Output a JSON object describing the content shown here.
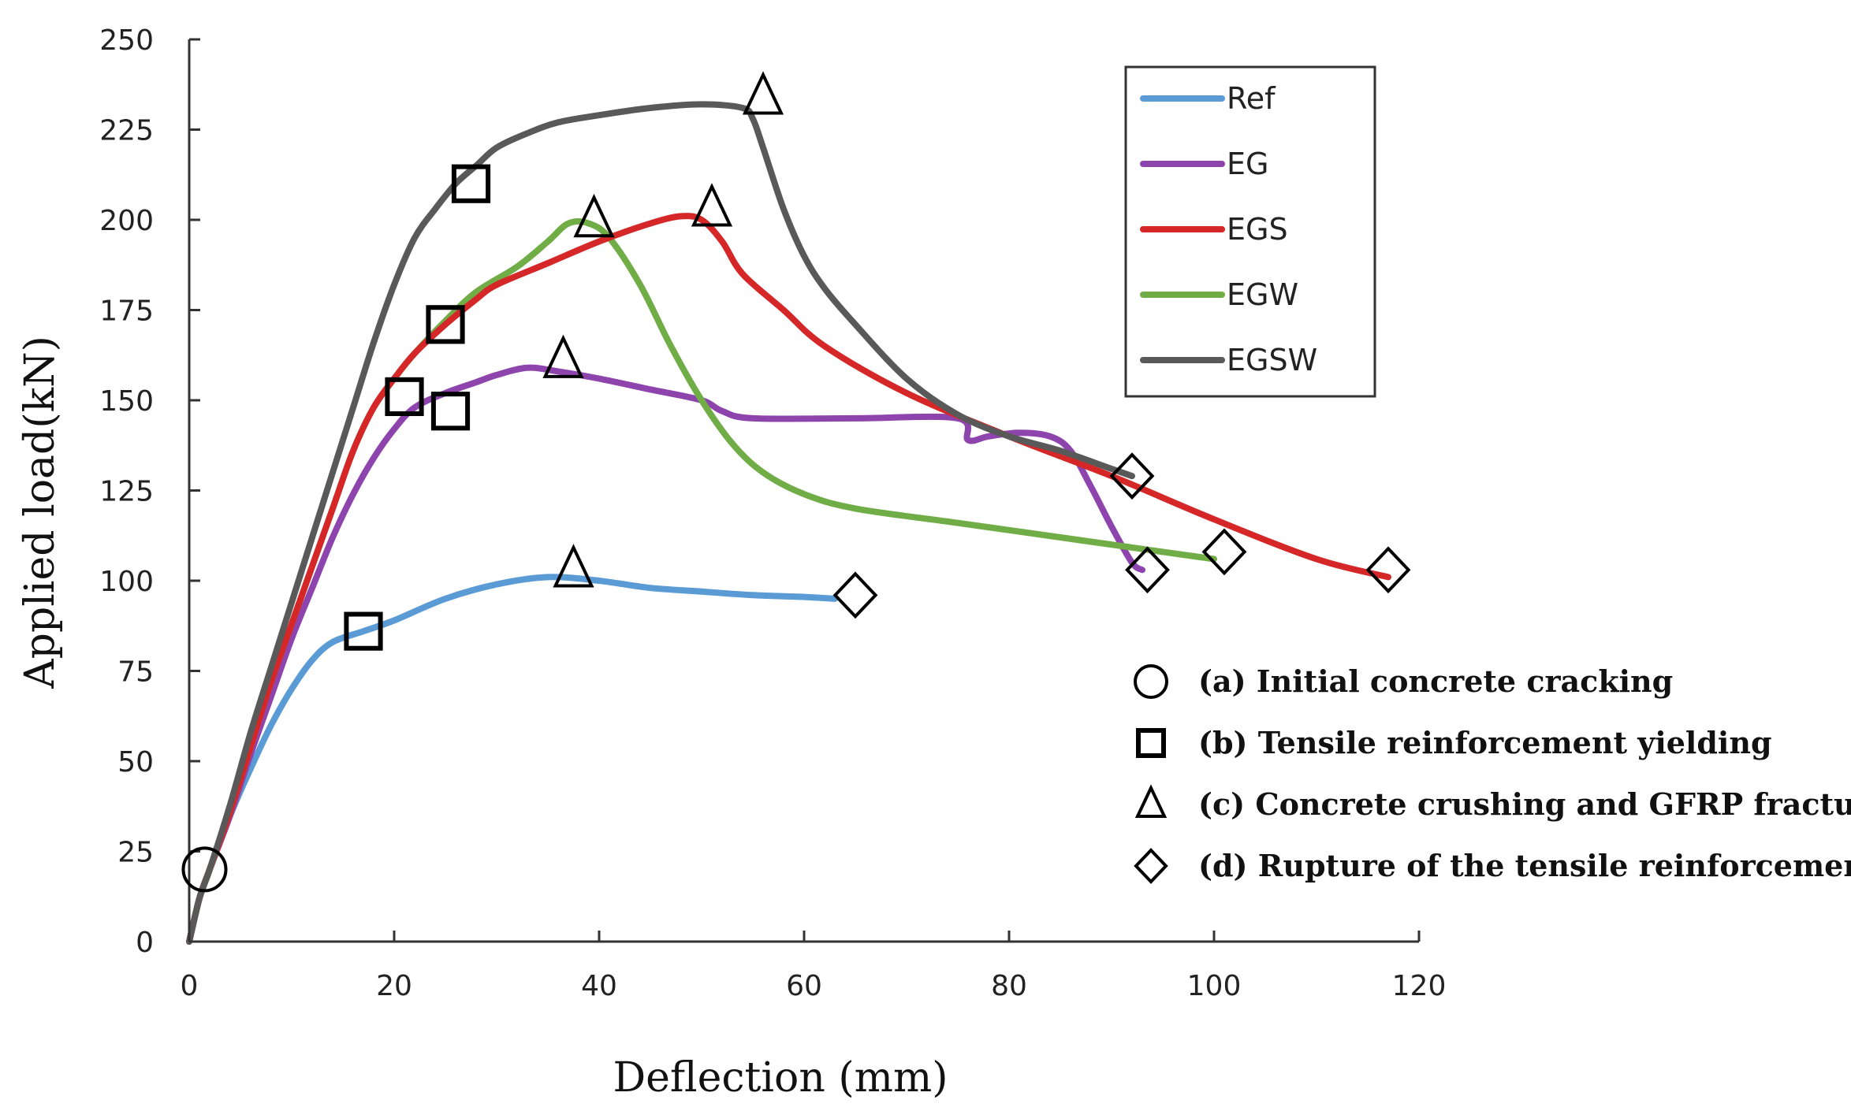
{
  "chart_data": {
    "type": "line",
    "xlabel": "Deflection (mm)",
    "ylabel": "Applied load(kN)",
    "xlim": [
      0,
      120
    ],
    "ylim": [
      0,
      250
    ],
    "x_ticks": [
      0,
      20,
      40,
      60,
      80,
      100,
      120
    ],
    "y_ticks": [
      0,
      25,
      50,
      75,
      100,
      125,
      150,
      175,
      200,
      225,
      250
    ],
    "series": [
      {
        "name": "Ref",
        "color": "#5b9bd5",
        "points": [
          [
            0,
            0
          ],
          [
            1,
            12
          ],
          [
            2,
            20
          ],
          [
            4,
            35
          ],
          [
            6,
            48
          ],
          [
            8,
            60
          ],
          [
            10,
            70
          ],
          [
            12,
            78
          ],
          [
            14,
            83
          ],
          [
            17,
            86
          ],
          [
            20,
            89
          ],
          [
            25,
            95
          ],
          [
            30,
            99
          ],
          [
            35,
            101
          ],
          [
            40,
            100
          ],
          [
            45,
            98
          ],
          [
            50,
            97
          ],
          [
            55,
            96
          ],
          [
            60,
            95.5
          ],
          [
            63,
            95
          ]
        ]
      },
      {
        "name": "EG",
        "color": "#8e44ad",
        "points": [
          [
            0,
            0
          ],
          [
            1,
            12
          ],
          [
            2,
            20
          ],
          [
            4,
            35
          ],
          [
            6,
            52
          ],
          [
            8,
            68
          ],
          [
            10,
            84
          ],
          [
            12,
            98
          ],
          [
            14,
            112
          ],
          [
            16,
            124
          ],
          [
            18,
            134
          ],
          [
            20,
            142
          ],
          [
            22,
            148
          ],
          [
            25,
            152
          ],
          [
            28,
            155
          ],
          [
            30,
            157
          ],
          [
            33,
            159
          ],
          [
            36,
            158
          ],
          [
            40,
            156
          ],
          [
            45,
            153
          ],
          [
            50,
            150
          ],
          [
            52,
            147
          ],
          [
            55,
            145
          ],
          [
            65,
            145
          ],
          [
            75,
            145
          ],
          [
            76,
            139
          ],
          [
            78,
            140
          ],
          [
            81,
            141
          ],
          [
            84,
            140
          ],
          [
            86,
            136
          ],
          [
            88,
            126
          ],
          [
            90,
            115
          ],
          [
            92,
            105
          ],
          [
            93,
            103
          ]
        ]
      },
      {
        "name": "EGS",
        "color": "#d62728",
        "points": [
          [
            0,
            0
          ],
          [
            1,
            12
          ],
          [
            2,
            20
          ],
          [
            4,
            36
          ],
          [
            6,
            54
          ],
          [
            8,
            72
          ],
          [
            10,
            88
          ],
          [
            12,
            104
          ],
          [
            14,
            120
          ],
          [
            16,
            136
          ],
          [
            18,
            148
          ],
          [
            20,
            156
          ],
          [
            22,
            163
          ],
          [
            25,
            171
          ],
          [
            28,
            178
          ],
          [
            30,
            182
          ],
          [
            35,
            188
          ],
          [
            40,
            194
          ],
          [
            45,
            199
          ],
          [
            48,
            201
          ],
          [
            50,
            200
          ],
          [
            52,
            194
          ],
          [
            54,
            185
          ],
          [
            58,
            175
          ],
          [
            62,
            165
          ],
          [
            70,
            152
          ],
          [
            80,
            140
          ],
          [
            90,
            129
          ],
          [
            100,
            117
          ],
          [
            110,
            106
          ],
          [
            117,
            101
          ]
        ]
      },
      {
        "name": "EGW",
        "color": "#70ad47",
        "points": [
          [
            0,
            0
          ],
          [
            1,
            12
          ],
          [
            2,
            20
          ],
          [
            4,
            36
          ],
          [
            6,
            54
          ],
          [
            8,
            72
          ],
          [
            10,
            88
          ],
          [
            12,
            104
          ],
          [
            14,
            120
          ],
          [
            16,
            136
          ],
          [
            18,
            148
          ],
          [
            20,
            156
          ],
          [
            22,
            163
          ],
          [
            25,
            172
          ],
          [
            28,
            180
          ],
          [
            32,
            187
          ],
          [
            35,
            194
          ],
          [
            37,
            199
          ],
          [
            39,
            199
          ],
          [
            41,
            195
          ],
          [
            44,
            182
          ],
          [
            47,
            165
          ],
          [
            50,
            150
          ],
          [
            53,
            138
          ],
          [
            56,
            130
          ],
          [
            60,
            124
          ],
          [
            65,
            120
          ],
          [
            75,
            116
          ],
          [
            85,
            112
          ],
          [
            95,
            108
          ],
          [
            100,
            106
          ]
        ]
      },
      {
        "name": "EGSW",
        "color": "#595959",
        "points": [
          [
            0,
            0
          ],
          [
            1,
            12
          ],
          [
            2,
            20
          ],
          [
            4,
            38
          ],
          [
            6,
            58
          ],
          [
            8,
            76
          ],
          [
            10,
            94
          ],
          [
            12,
            112
          ],
          [
            14,
            130
          ],
          [
            16,
            148
          ],
          [
            18,
            166
          ],
          [
            20,
            182
          ],
          [
            22,
            195
          ],
          [
            24,
            203
          ],
          [
            26,
            210
          ],
          [
            28,
            215
          ],
          [
            30,
            220
          ],
          [
            33,
            224
          ],
          [
            36,
            227
          ],
          [
            40,
            229
          ],
          [
            45,
            231
          ],
          [
            50,
            232
          ],
          [
            54,
            231
          ],
          [
            55,
            228
          ],
          [
            56,
            220
          ],
          [
            58,
            203
          ],
          [
            60,
            190
          ],
          [
            62,
            181
          ],
          [
            65,
            171
          ],
          [
            70,
            156
          ],
          [
            75,
            146
          ],
          [
            80,
            140
          ],
          [
            85,
            136
          ],
          [
            90,
            131
          ],
          [
            92,
            129
          ]
        ]
      }
    ],
    "markers": [
      {
        "shape": "circle",
        "x": 1.5,
        "y": 20
      },
      {
        "shape": "square",
        "x": 17,
        "y": 86
      },
      {
        "shape": "square",
        "x": 21,
        "y": 151
      },
      {
        "shape": "square",
        "x": 25.5,
        "y": 147
      },
      {
        "shape": "square",
        "x": 25,
        "y": 171
      },
      {
        "shape": "square",
        "x": 27.5,
        "y": 210
      },
      {
        "shape": "triangle",
        "x": 37.5,
        "y": 103
      },
      {
        "shape": "triangle",
        "x": 36.5,
        "y": 161
      },
      {
        "shape": "triangle",
        "x": 39.5,
        "y": 200
      },
      {
        "shape": "triangle",
        "x": 51,
        "y": 203
      },
      {
        "shape": "triangle",
        "x": 56,
        "y": 234
      },
      {
        "shape": "diamond",
        "x": 65,
        "y": 96
      },
      {
        "shape": "diamond",
        "x": 92,
        "y": 129
      },
      {
        "shape": "diamond",
        "x": 93.5,
        "y": 103
      },
      {
        "shape": "diamond",
        "x": 101,
        "y": 108
      },
      {
        "shape": "diamond",
        "x": 117,
        "y": 103
      }
    ],
    "marker_legend": [
      {
        "shape": "circle",
        "label": "(a) Initial concrete cracking"
      },
      {
        "shape": "square",
        "label": "(b) Tensile reinforcement yielding"
      },
      {
        "shape": "triangle",
        "label": "(c) Concrete crushing and GFRP fracture"
      },
      {
        "shape": "diamond",
        "label": "(d) Rupture of the tensile reinforcement."
      }
    ],
    "legend_position": "top-right"
  }
}
